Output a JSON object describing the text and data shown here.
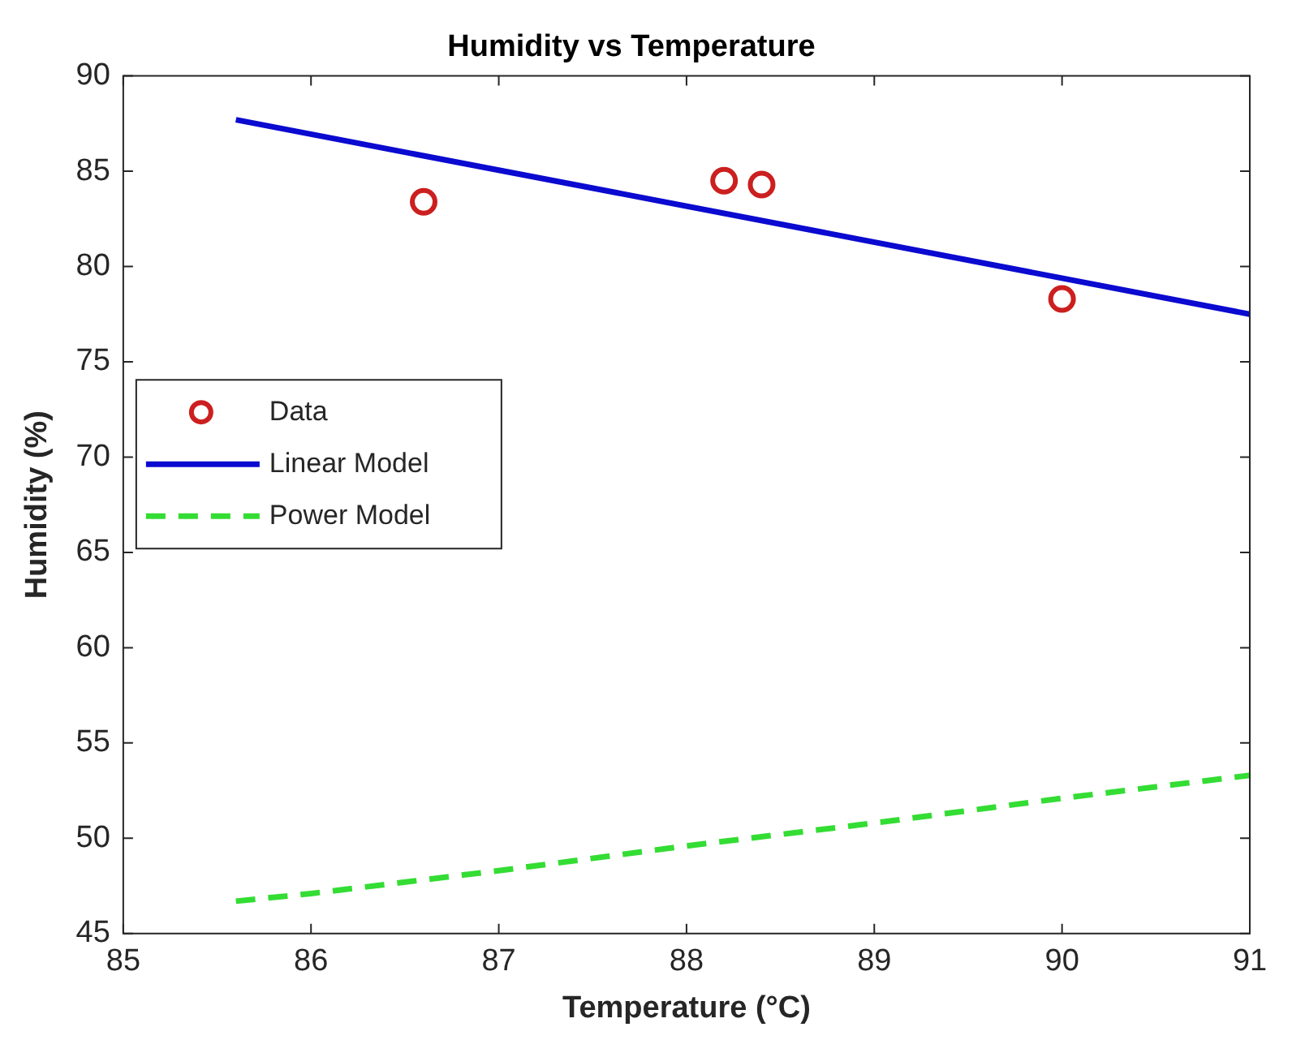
{
  "chart_data": {
    "type": "scatter",
    "title": "Humidity vs Temperature",
    "xlabel": "Temperature (°C)",
    "ylabel": "Humidity (%)",
    "xlim": [
      85,
      91
    ],
    "xticks": [
      85,
      86,
      87,
      88,
      89,
      90,
      91
    ],
    "ylim": [
      45,
      90
    ],
    "yticks": [
      45,
      50,
      55,
      60,
      65,
      70,
      75,
      80,
      85,
      90
    ],
    "grid": false,
    "legend": "left",
    "series": [
      {
        "name": "Data",
        "marker": "circle",
        "color": "#cc1f1f",
        "x": [
          86.6,
          88.2,
          88.4,
          90.0
        ],
        "values": [
          83.4,
          84.5,
          84.3,
          78.3
        ]
      },
      {
        "name": "Linear Model",
        "type": "line",
        "line_style": "solid",
        "color": "#0a0ad0",
        "x": [
          85.6,
          91
        ],
        "values": [
          87.7,
          77.5
        ]
      },
      {
        "name": "Power Model",
        "type": "line",
        "line_style": "dashed",
        "color": "#33dd33",
        "x": [
          85.6,
          86,
          87,
          88,
          89,
          90,
          91
        ],
        "values": [
          46.7,
          47.1,
          48.3,
          49.6,
          50.8,
          52.1,
          53.3
        ]
      }
    ]
  }
}
